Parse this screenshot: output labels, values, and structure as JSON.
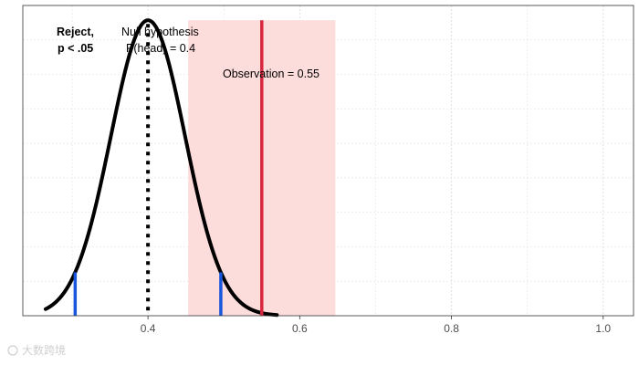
{
  "chart_data": {
    "type": "line",
    "title": "",
    "xlabel": "",
    "ylabel": "",
    "xlim": [
      0.235,
      1.04
    ],
    "ylim": [
      0,
      1.05
    ],
    "x_ticks": [
      0.4,
      0.6,
      0.8,
      1.0
    ],
    "x_tick_labels": [
      "0.4",
      "0.6",
      "0.8",
      "1.0"
    ],
    "grid": true,
    "series": [
      {
        "kind": "null-distribution-curve",
        "mean": 0.4,
        "sd": 0.049,
        "x_range": [
          0.265,
          0.57
        ],
        "color": "#000000"
      }
    ],
    "null_mean_line": {
      "x": 0.4,
      "style": "dotted",
      "color": "#000000"
    },
    "rejection_bounds": {
      "values": [
        0.304,
        0.496
      ],
      "color": "#1a56db"
    },
    "observation": {
      "x": 0.55,
      "color": "#d7263d"
    },
    "observation_band": {
      "x_range": [
        0.453,
        0.647
      ],
      "color": "#fddcdc"
    },
    "annotations": {
      "reject_line1": "Reject,",
      "reject_line2": "p < .05",
      "null_line1": "Null hypothesis",
      "null_line2": "P(head) = 0.4",
      "observation_label": "Observation = 0.55"
    }
  },
  "watermark": "大数跨境"
}
